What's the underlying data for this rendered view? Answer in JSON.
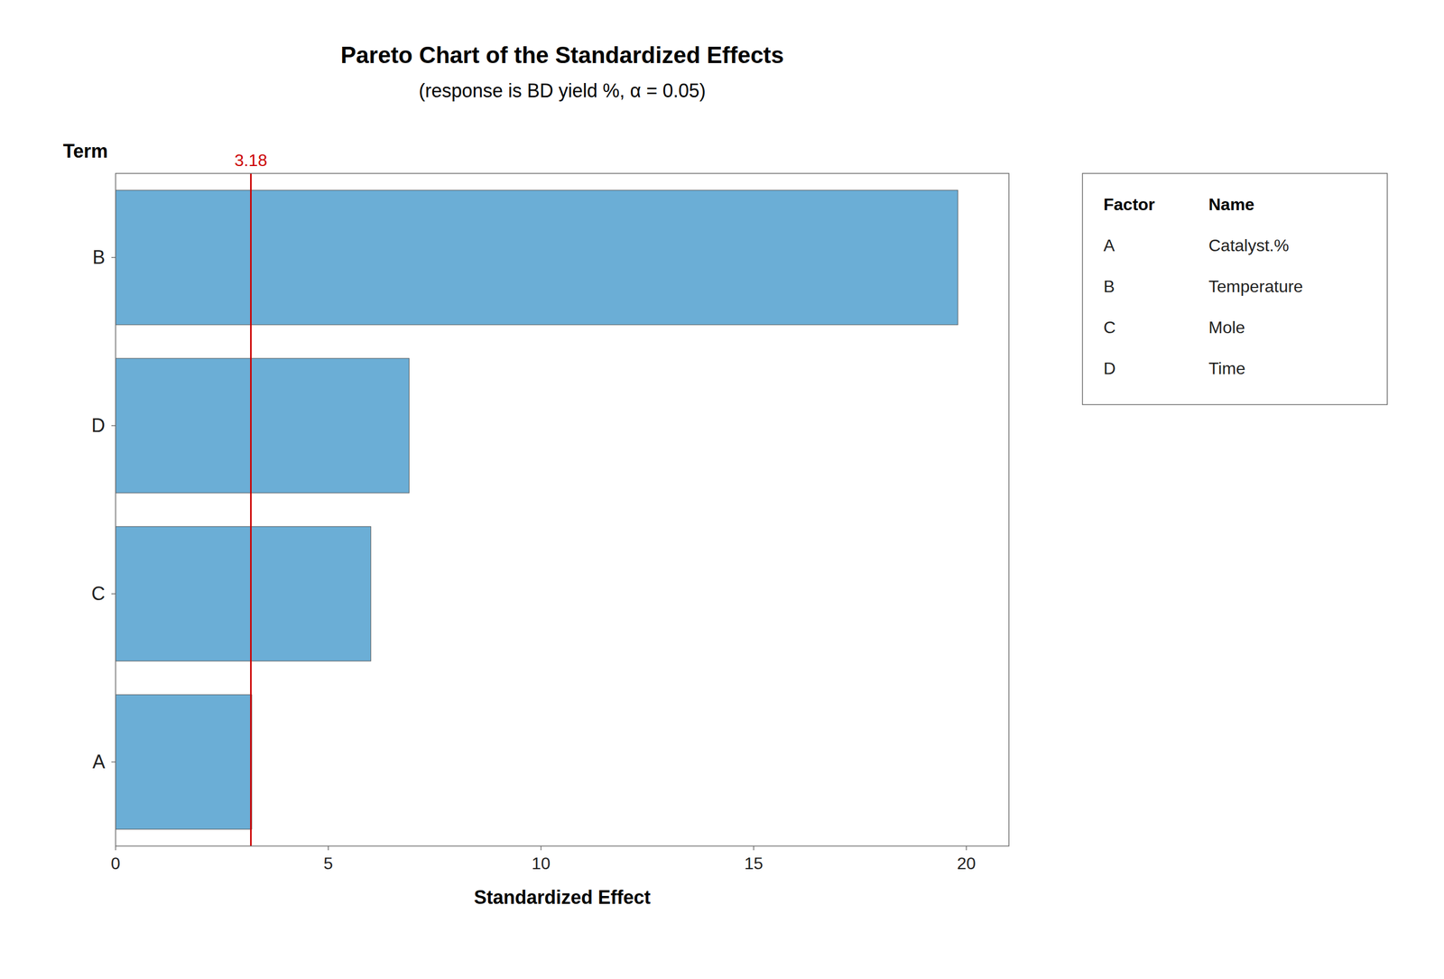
{
  "chart_data": {
    "type": "bar",
    "orientation": "horizontal",
    "title": "Pareto Chart of the Standardized Effects",
    "subtitle": "(response is BD yield %, α = 0.05)",
    "categories": [
      "B",
      "D",
      "C",
      "A"
    ],
    "values": [
      19.8,
      6.9,
      6.0,
      3.2
    ],
    "color": "#6BAED6",
    "xlabel": "Standardized Effect",
    "ylabel": "Term",
    "xlim": [
      0,
      21
    ],
    "xticks": [
      0,
      5,
      10,
      15,
      20
    ],
    "grid": false,
    "reference_line": {
      "value": 3.18,
      "color": "#CC0000"
    },
    "factor_table": {
      "headers": [
        "Factor",
        "Name"
      ],
      "rows": [
        [
          "A",
          "Catalyst.%"
        ],
        [
          "B",
          "Temperature"
        ],
        [
          "C",
          "Mole"
        ],
        [
          "D",
          "Time"
        ]
      ]
    }
  }
}
